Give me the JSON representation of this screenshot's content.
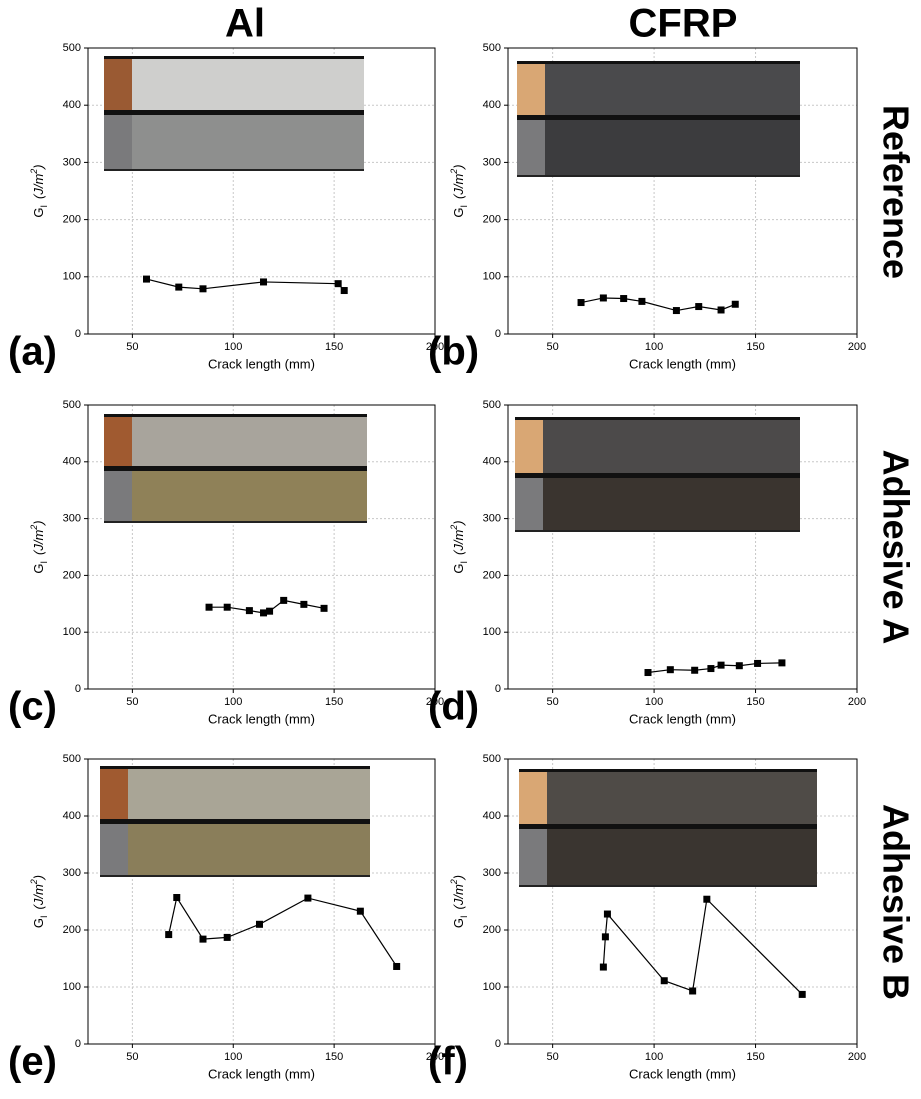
{
  "column_titles": [
    "Al",
    "CFRP"
  ],
  "row_labels": [
    "Reference",
    "Adhesive A",
    "Adhesive B"
  ],
  "chart_data": [
    {
      "type": "line",
      "panel": "(a)",
      "xlabel": "Crack length (mm)",
      "ylabel": [
        "G",
        "I",
        "(J/m",
        "2",
        ")"
      ],
      "x": [
        57,
        73,
        85,
        115,
        152,
        155
      ],
      "values": [
        96,
        82,
        79,
        91,
        88,
        76
      ],
      "color": "#000000",
      "xlim": [
        28,
        200
      ],
      "xticks": [
        50,
        100,
        150,
        200
      ],
      "ylim": [
        0,
        500
      ],
      "yticks": [
        0,
        100,
        200,
        300,
        400,
        500
      ],
      "grid": true
    },
    {
      "type": "line",
      "panel": "(b)",
      "xlabel": "Crack length (mm)",
      "ylabel": [
        "G",
        "I",
        "(J/m",
        "2",
        ")"
      ],
      "x": [
        64,
        75,
        85,
        94,
        111,
        122,
        133,
        140
      ],
      "values": [
        55,
        63,
        62,
        57,
        41,
        48,
        42,
        52
      ],
      "color": "#000000",
      "xlim": [
        28,
        200
      ],
      "xticks": [
        50,
        100,
        150,
        200
      ],
      "ylim": [
        0,
        500
      ],
      "yticks": [
        0,
        100,
        200,
        300,
        400,
        500
      ],
      "grid": true
    },
    {
      "type": "line",
      "panel": "(c)",
      "xlabel": "Crack length (mm)",
      "ylabel": [
        "G",
        "I",
        "(J/m",
        "2",
        ")"
      ],
      "x": [
        88,
        97,
        108,
        115,
        118,
        125,
        135,
        145
      ],
      "values": [
        144,
        144,
        138,
        134,
        137,
        156,
        149,
        142
      ],
      "color": "#000000",
      "xlim": [
        28,
        200
      ],
      "xticks": [
        50,
        100,
        150,
        200
      ],
      "ylim": [
        0,
        500
      ],
      "yticks": [
        0,
        100,
        200,
        300,
        400,
        500
      ],
      "grid": true
    },
    {
      "type": "line",
      "panel": "(d)",
      "xlabel": "Crack length (mm)",
      "ylabel": [
        "G",
        "I",
        "(J/m",
        "2",
        ")"
      ],
      "x": [
        97,
        108,
        120,
        128,
        133,
        142,
        151,
        163
      ],
      "values": [
        29,
        34,
        33,
        36,
        42,
        41,
        45,
        46
      ],
      "color": "#000000",
      "xlim": [
        28,
        200
      ],
      "xticks": [
        50,
        100,
        150,
        200
      ],
      "ylim": [
        0,
        500
      ],
      "yticks": [
        0,
        100,
        200,
        300,
        400,
        500
      ],
      "grid": true
    },
    {
      "type": "line",
      "panel": "(e)",
      "xlabel": "Crack length (mm)",
      "ylabel": [
        "G",
        "I",
        "(J/m",
        "2",
        ")"
      ],
      "x": [
        68,
        72,
        85,
        97,
        113,
        137,
        163,
        181
      ],
      "values": [
        192,
        257,
        184,
        187,
        210,
        256,
        233,
        136
      ],
      "color": "#000000",
      "xlim": [
        28,
        200
      ],
      "xticks": [
        50,
        100,
        150,
        200
      ],
      "ylim": [
        0,
        500
      ],
      "yticks": [
        0,
        100,
        200,
        300,
        400,
        500
      ],
      "grid": true
    },
    {
      "type": "line",
      "panel": "(f)",
      "xlabel": "Crack length (mm)",
      "ylabel": [
        "G",
        "I",
        "(J/m",
        "2",
        ")"
      ],
      "x": [
        75,
        76,
        77,
        105,
        119,
        126,
        173
      ],
      "values": [
        135,
        188,
        228,
        111,
        93,
        254,
        87
      ],
      "color": "#000000",
      "xlim": [
        28,
        200
      ],
      "xticks": [
        50,
        100,
        150,
        200
      ],
      "ylim": [
        0,
        500
      ],
      "yticks": [
        0,
        100,
        200,
        300,
        400,
        500
      ],
      "grid": true
    }
  ]
}
